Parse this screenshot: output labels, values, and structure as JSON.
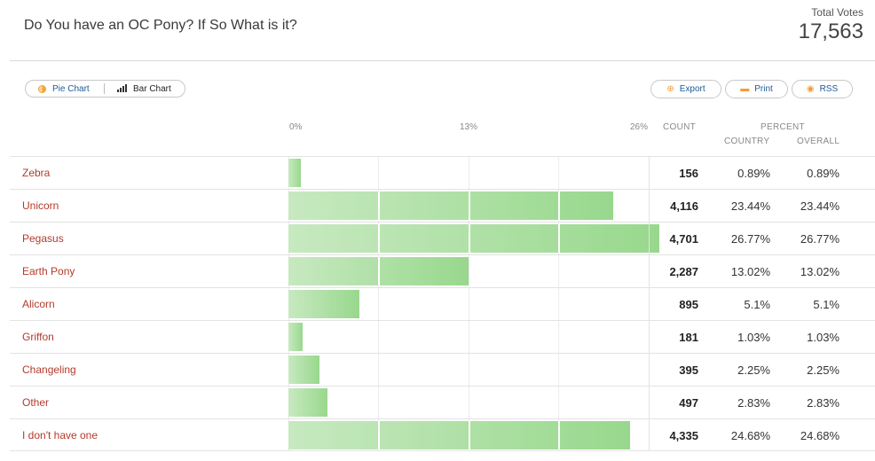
{
  "header": {
    "title": "Do You have an OC Pony? If So What is it?",
    "total_votes_label": "Total Votes",
    "total_votes_value": "17,563"
  },
  "view_toggle": {
    "pie_label": "Pie Chart",
    "bar_label": "Bar Chart"
  },
  "actions": {
    "export_label": "Export",
    "print_label": "Print",
    "rss_label": "RSS"
  },
  "columns": {
    "count": "COUNT",
    "percent": "PERCENT",
    "country": "COUNTRY",
    "overall": "OVERALL"
  },
  "colors": {
    "label": "#b33a2c",
    "bar_start": "#c7e9c0",
    "bar_end": "#98d88d",
    "link": "#1f5a96",
    "icon_accent": "#f39c34"
  },
  "chart_data": {
    "type": "bar",
    "orientation": "horizontal",
    "title": "Do You have an OC Pony? If So What is it?",
    "x_ticks": [
      "0%",
      "13%",
      "26%"
    ],
    "xlim": [
      0,
      26
    ],
    "categories": [
      "Zebra",
      "Unicorn",
      "Pegasus",
      "Earth Pony",
      "Alicorn",
      "Griffon",
      "Changeling",
      "Other",
      "I don't have one"
    ],
    "counts": [
      "156",
      "4,116",
      "4,701",
      "2,287",
      "895",
      "181",
      "395",
      "497",
      "4,335"
    ],
    "percent_country": [
      "0.89%",
      "23.44%",
      "26.77%",
      "13.02%",
      "5.1%",
      "1.03%",
      "2.25%",
      "2.83%",
      "24.68%"
    ],
    "percent_overall": [
      "0.89%",
      "23.44%",
      "26.77%",
      "13.02%",
      "5.1%",
      "1.03%",
      "2.25%",
      "2.83%",
      "24.68%"
    ],
    "values": [
      0.89,
      23.44,
      26.77,
      13.02,
      5.1,
      1.03,
      2.25,
      2.83,
      24.68
    ]
  }
}
